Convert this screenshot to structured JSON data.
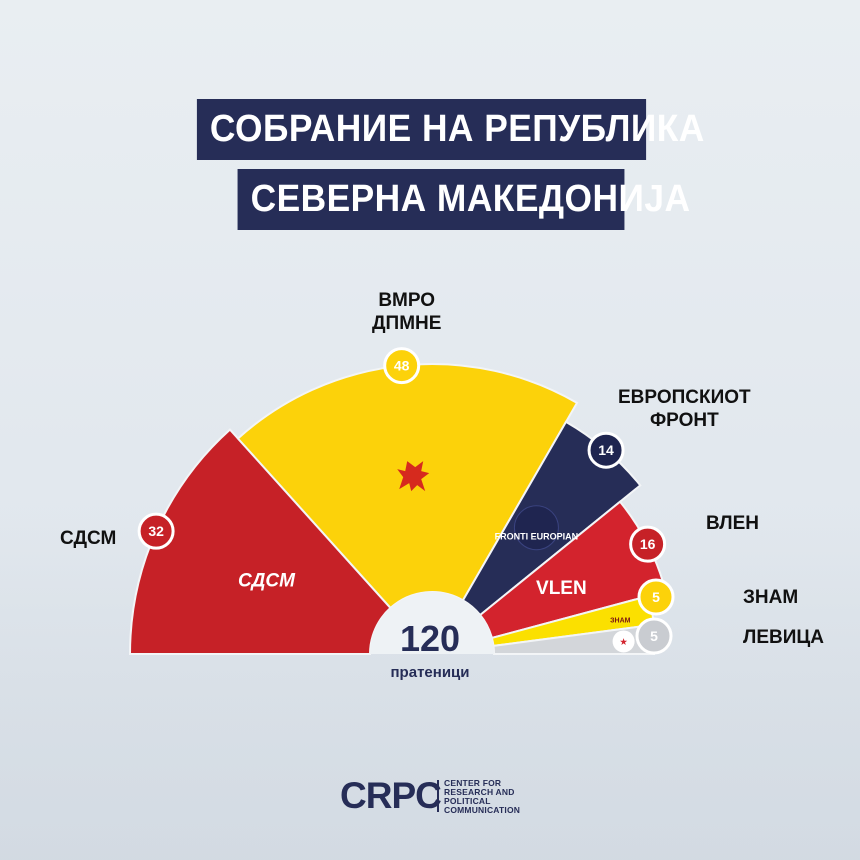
{
  "title": {
    "line1": "СОБРАНИЕ НА РЕПУБЛИКА",
    "line2": "СЕВЕРНА МАКЕДОНИЈА"
  },
  "center": {
    "total": "120",
    "unit": "пратеници"
  },
  "chart_data": {
    "type": "pie",
    "variant": "parliament-half-donut",
    "total": 120,
    "series": [
      {
        "name": "СДСМ",
        "value": 32,
        "color": "#c62127",
        "inner_label": "СДСМ"
      },
      {
        "name": "ВМРО ДПМНЕ",
        "value": 48,
        "color": "#fcd20a",
        "inner_label": ""
      },
      {
        "name": "ЕВРОПСКИОТ ФРОНТ",
        "value": 14,
        "color": "#262d57",
        "inner_label": "FRONTI EUROPIAN"
      },
      {
        "name": "ВЛЕН",
        "value": 16,
        "color": "#d3232d",
        "inner_label": "VLEN"
      },
      {
        "name": "ЗНАМ",
        "value": 5,
        "color": "#fbe000",
        "inner_label": "ЗНАМ"
      },
      {
        "name": "ЛЕВИЦА",
        "value": 5,
        "color": "#d3d6da",
        "inner_label": ""
      }
    ]
  },
  "labels": {
    "sdsm": "СДСМ",
    "vmro1": "ВМРО",
    "vmro2": "ДПМНЕ",
    "front1": "ЕВРОПСКИОТ",
    "front2": "ФРОНТ",
    "vlen": "ВЛЕН",
    "znam": "ЗНАМ",
    "levica": "ЛЕВИЦА"
  },
  "logo": {
    "mark": "CRPC",
    "line1": "CENTER FOR",
    "line2": "RESEARCH AND",
    "line3": "POLITICAL",
    "line4": "COMMUNICATION"
  }
}
